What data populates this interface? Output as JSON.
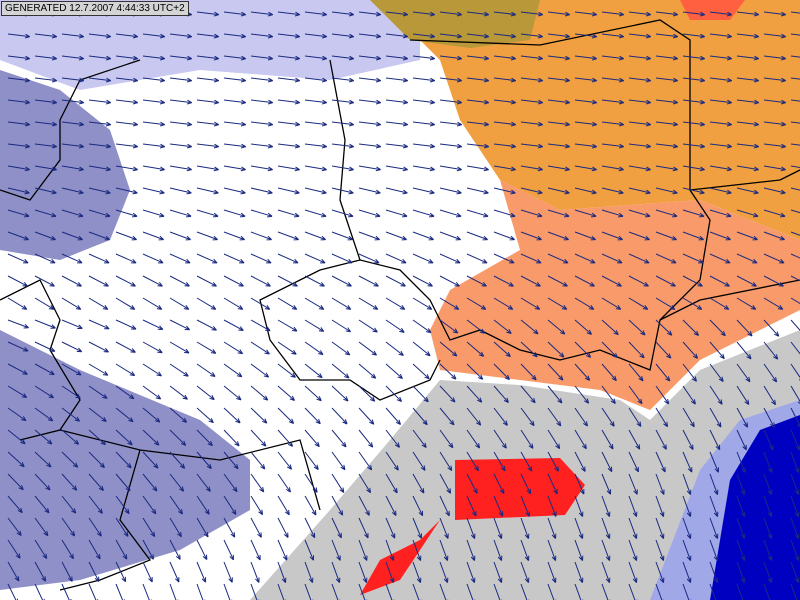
{
  "header": {
    "generated": "GENERATED 12.7.2007 4:44:33 UTC+2"
  }
}
